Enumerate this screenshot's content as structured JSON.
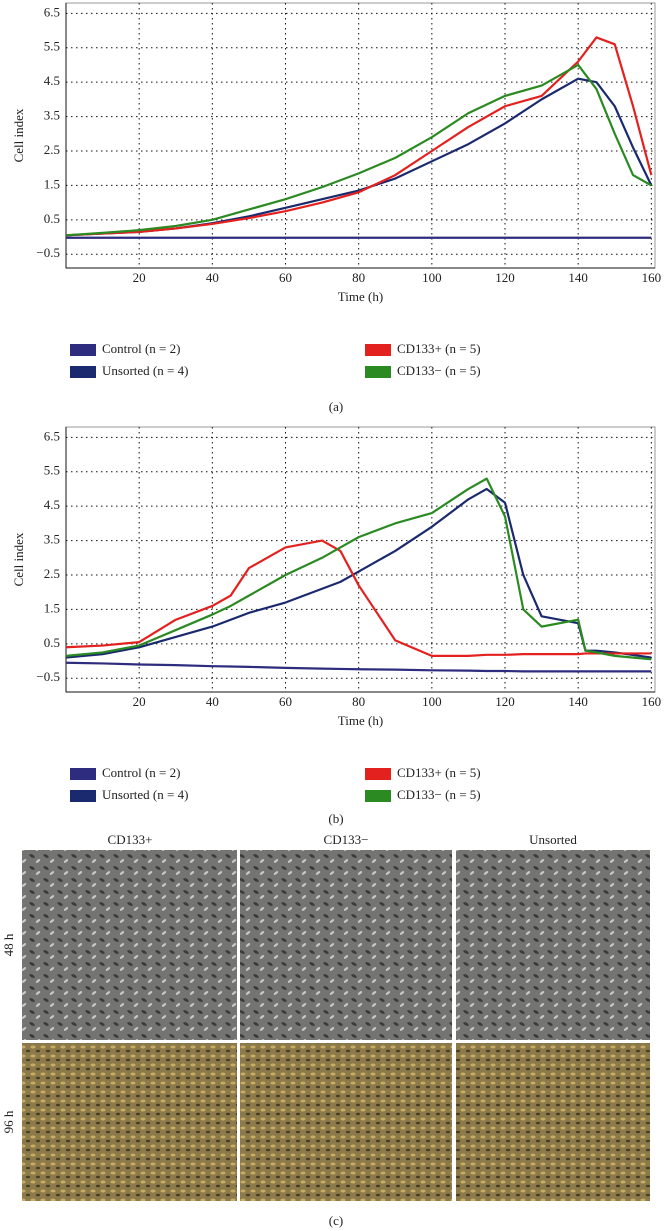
{
  "chart_data": [
    {
      "type": "line",
      "x_label": "Time (h)",
      "y_label": "Cell index",
      "xlim": [
        0,
        161
      ],
      "xticks": [
        20,
        40,
        60,
        80,
        100,
        120,
        140,
        160
      ],
      "ylim": [
        -0.9,
        6.8
      ],
      "yticks": [
        {
          "value": -0.5,
          "label": "−0.5"
        },
        0.5,
        1.5,
        2.5,
        3.5,
        4.5,
        5.5,
        6.5
      ],
      "grid": true,
      "x": [
        0,
        10,
        20,
        30,
        40,
        50,
        60,
        70,
        80,
        90,
        100,
        110,
        120,
        130,
        140,
        145,
        150,
        155,
        160
      ],
      "series": [
        {
          "name": "Control (n = 2)",
          "color": "#2e2c7e",
          "values": [
            -0.02,
            -0.02,
            -0.02,
            -0.02,
            -0.02,
            -0.02,
            -0.02,
            -0.02,
            -0.02,
            -0.02,
            -0.02,
            -0.02,
            -0.02,
            -0.02,
            -0.02,
            -0.02,
            -0.02,
            -0.02,
            -0.02
          ]
        },
        {
          "name": "Unsorted (n = 4)",
          "color": "#1b2a6e",
          "values": [
            0.05,
            0.1,
            0.15,
            0.25,
            0.4,
            0.6,
            0.85,
            1.1,
            1.35,
            1.7,
            2.2,
            2.7,
            3.3,
            4.0,
            4.6,
            4.5,
            3.8,
            2.6,
            1.5
          ]
        },
        {
          "name": "CD133+ (n = 5)",
          "color": "#e3211f",
          "values": [
            0.05,
            0.1,
            0.15,
            0.25,
            0.38,
            0.55,
            0.75,
            1.0,
            1.3,
            1.8,
            2.5,
            3.2,
            3.8,
            4.1,
            5.1,
            5.8,
            5.6,
            3.8,
            1.8
          ]
        },
        {
          "name": "CD133− (n = 5)",
          "color": "#2b8a22",
          "values": [
            0.05,
            0.12,
            0.2,
            0.32,
            0.5,
            0.8,
            1.1,
            1.45,
            1.85,
            2.3,
            2.9,
            3.6,
            4.1,
            4.4,
            5.0,
            4.3,
            3.0,
            1.8,
            1.5
          ]
        }
      ]
    },
    {
      "type": "line",
      "x_label": "Time (h)",
      "y_label": "Cell index",
      "xlim": [
        0,
        161
      ],
      "xticks": [
        20,
        40,
        60,
        80,
        100,
        120,
        140,
        160
      ],
      "ylim": [
        -0.9,
        6.8
      ],
      "yticks": [
        {
          "value": -0.5,
          "label": "−0.5"
        },
        0.5,
        1.5,
        2.5,
        3.5,
        4.5,
        5.5,
        6.5
      ],
      "grid": true,
      "x": [
        0,
        10,
        20,
        30,
        40,
        45,
        50,
        60,
        70,
        75,
        80,
        90,
        100,
        110,
        115,
        120,
        125,
        130,
        140,
        142,
        145,
        150,
        160
      ],
      "series": [
        {
          "name": "Control (n = 2)",
          "color": "#2e2c7e",
          "values": [
            -0.05,
            -0.07,
            -0.1,
            -0.12,
            -0.15,
            -0.16,
            -0.17,
            -0.2,
            -0.22,
            -0.23,
            -0.24,
            -0.25,
            -0.27,
            -0.28,
            -0.29,
            -0.29,
            -0.3,
            -0.3,
            -0.3,
            -0.3,
            -0.3,
            -0.3,
            -0.3
          ]
        },
        {
          "name": "Unsorted (n = 4)",
          "color": "#1b2a6e",
          "values": [
            0.1,
            0.2,
            0.4,
            0.7,
            1.0,
            1.2,
            1.4,
            1.7,
            2.1,
            2.3,
            2.6,
            3.2,
            3.9,
            4.7,
            5.0,
            4.6,
            2.5,
            1.3,
            1.1,
            0.3,
            0.3,
            0.25,
            0.1
          ]
        },
        {
          "name": "CD133+ (n = 5)",
          "color": "#e3211f",
          "values": [
            0.4,
            0.45,
            0.55,
            1.2,
            1.6,
            1.9,
            2.7,
            3.3,
            3.5,
            3.2,
            2.2,
            0.6,
            0.15,
            0.15,
            0.18,
            0.18,
            0.2,
            0.2,
            0.2,
            0.22,
            0.22,
            0.22,
            0.22
          ]
        },
        {
          "name": "CD133− (n = 5)",
          "color": "#2b8a22",
          "values": [
            0.15,
            0.25,
            0.45,
            0.9,
            1.35,
            1.6,
            1.9,
            2.5,
            3.0,
            3.3,
            3.6,
            4.0,
            4.3,
            5.0,
            5.3,
            4.2,
            1.5,
            1.0,
            1.2,
            0.3,
            0.25,
            0.15,
            0.05
          ]
        }
      ]
    }
  ],
  "panel_labels": [
    "(a)",
    "(b)",
    "(c)"
  ],
  "micrographs": {
    "columns": [
      "CD133+",
      "CD133−",
      "Unsorted"
    ],
    "rows": [
      "48 h",
      "96 h"
    ]
  }
}
